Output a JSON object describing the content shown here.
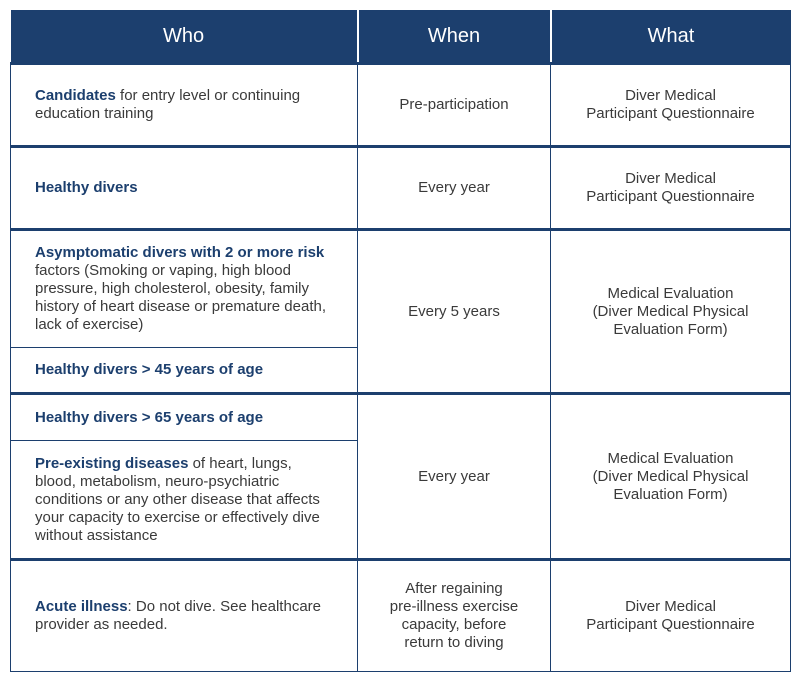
{
  "header": [
    "Who",
    "When",
    "What"
  ],
  "groups": [
    {
      "who": [
        {
          "bold": "Candidates",
          "text": " for entry level or continuing education training"
        }
      ],
      "when": [
        "Pre-participation"
      ],
      "what": [
        "Diver Medical",
        "Participant Questionnaire"
      ]
    },
    {
      "who": [
        {
          "bold": "Healthy divers"
        }
      ],
      "when": [
        "Every year"
      ],
      "what": [
        "Diver Medical",
        "Participant Questionnaire"
      ]
    },
    {
      "who": [
        {
          "bold": "Asymptomatic divers with 2 or more risk",
          "text": " factors (Smoking or vaping, high blood pressure, high cholesterol, obesity, family history of heart disease or premature death, lack of exercise)"
        },
        {
          "bold": "Healthy divers > 45 years of age"
        }
      ],
      "when": [
        "Every 5 years"
      ],
      "what": [
        "Medical Evaluation",
        "(Diver Medical Physical",
        "Evaluation Form)"
      ]
    },
    {
      "who": [
        {
          "bold": "Healthy divers > 65 years of age"
        },
        {
          "bold": "Pre-existing diseases",
          "text": " of heart, lungs, blood, metabolism, neuro-psychiatric conditions or any other disease that affects your capacity to exercise or effectively dive without assistance"
        }
      ],
      "when": [
        "Every year"
      ],
      "what": [
        "Medical Evaluation",
        "(Diver Medical Physical",
        "Evaluation Form)"
      ]
    },
    {
      "who": [
        {
          "bold": "Acute illness",
          "text": ": Do not dive. See healthcare provider as needed."
        }
      ],
      "when": [
        "After regaining",
        "pre-illness exercise",
        "capacity, before",
        "return to diving"
      ],
      "what": [
        "Diver Medical",
        "Participant Questionnaire"
      ]
    }
  ]
}
